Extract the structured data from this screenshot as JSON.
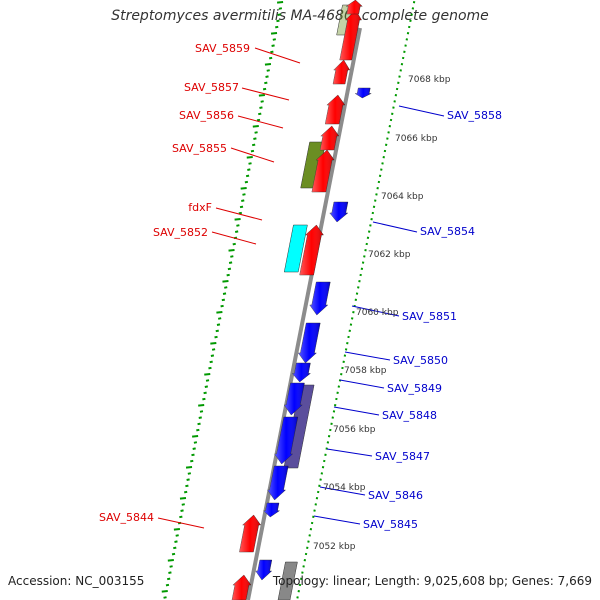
{
  "title": "Streptomyces avermitilis MA-4680, complete genome",
  "accession": "Accession: NC_003155",
  "summary": "Topology: linear; Length: 9,025,608 bp; Genes: 7,669",
  "colors": {
    "forward": "#ff0000",
    "reverse": "#0000ff",
    "backbone": "#999999",
    "ticks": "#009900",
    "cyan": "#00ffff",
    "olive": "#6b8e23",
    "slate": "#5b4e9c",
    "gray": "#888888"
  },
  "scale_labels": [
    "7068 kbp",
    "7066 kbp",
    "7064 kbp",
    "7062 kbp",
    "7060 kbp",
    "7058 kbp",
    "7056 kbp",
    "7054 kbp",
    "7052 kbp"
  ],
  "left_gene_labels": [
    "SAV_5859",
    "SAV_5857",
    "SAV_5856",
    "SAV_5855",
    "fdxF",
    "SAV_5852",
    "SAV_5844"
  ],
  "right_gene_labels": [
    "SAV_5858",
    "SAV_5854",
    "SAV_5851",
    "SAV_5850",
    "SAV_5849",
    "SAV_5848",
    "SAV_5847",
    "SAV_5846",
    "SAV_5845"
  ]
}
